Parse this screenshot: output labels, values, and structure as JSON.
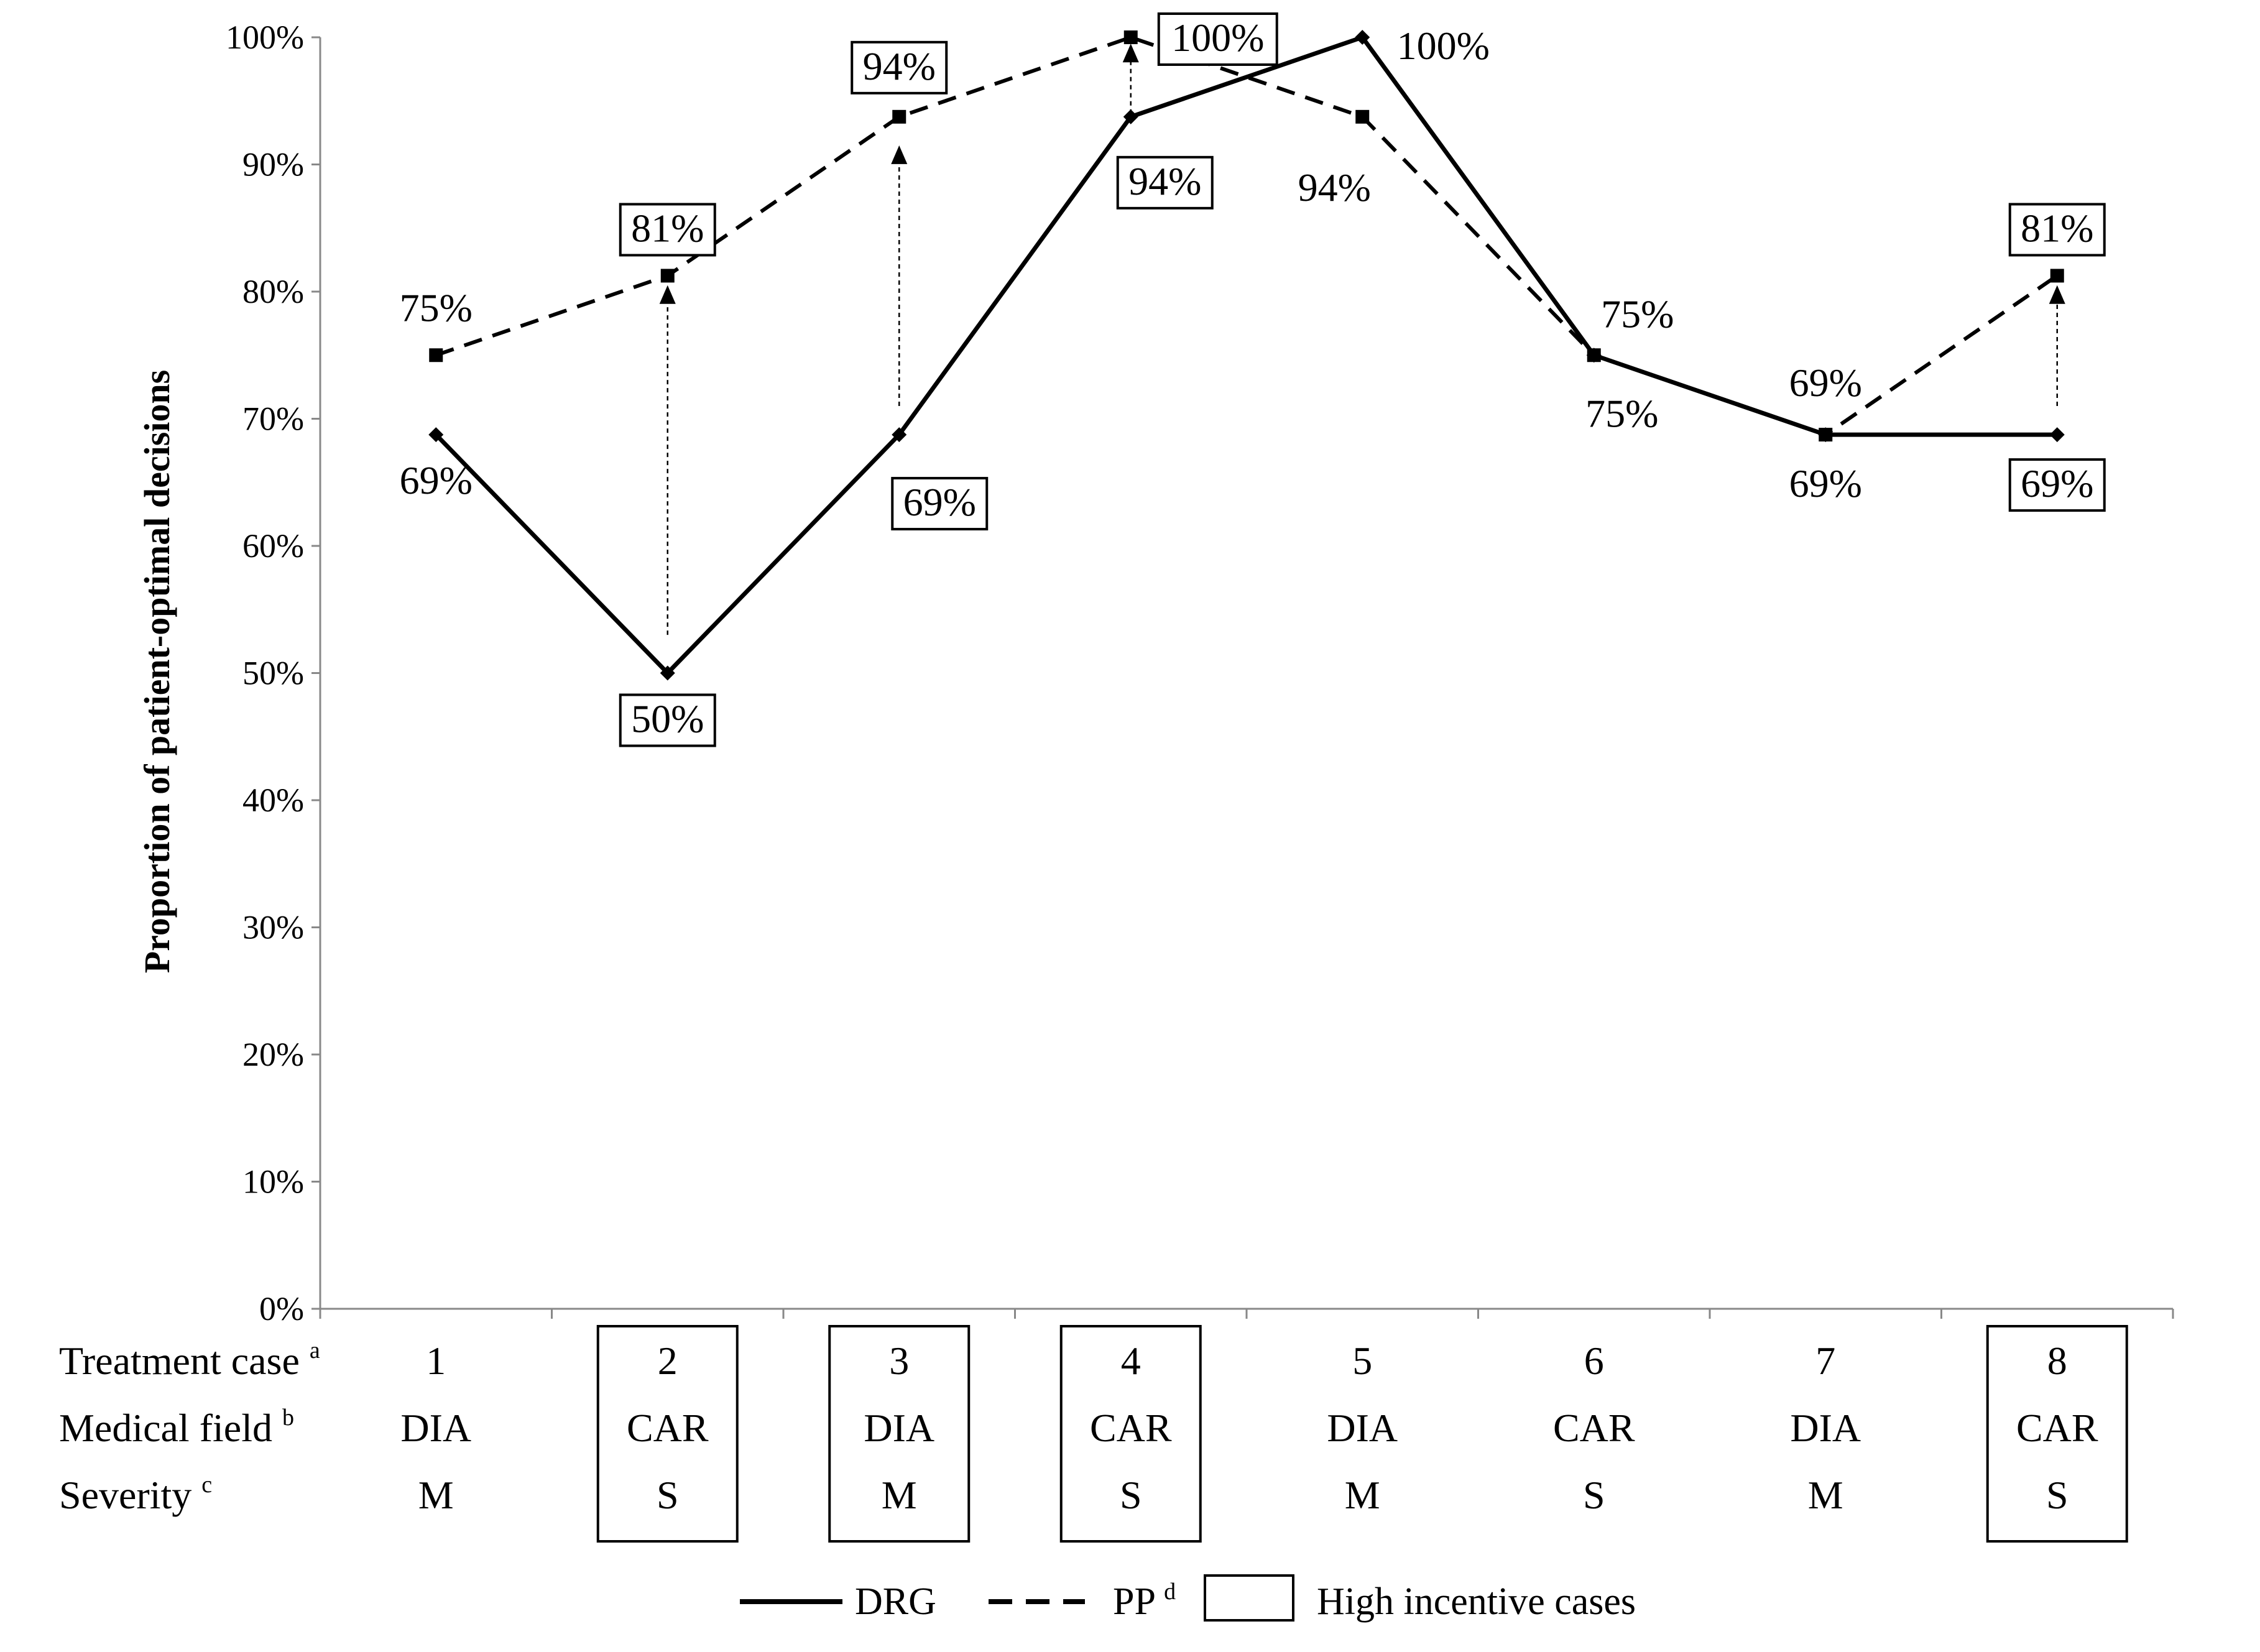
{
  "chart_data": {
    "type": "line",
    "xlabel": "",
    "ylabel": "Proportion of patient-optimal decisions",
    "ylim": [
      0,
      100
    ],
    "y_ticks": [
      "0%",
      "10%",
      "20%",
      "30%",
      "40%",
      "50%",
      "60%",
      "70%",
      "80%",
      "90%",
      "100%"
    ],
    "grid": false,
    "categories": [
      {
        "case": "1",
        "field": "DIA",
        "severity": "M",
        "high_incentive": false
      },
      {
        "case": "2",
        "field": "CAR",
        "severity": "S",
        "high_incentive": true
      },
      {
        "case": "3",
        "field": "DIA",
        "severity": "M",
        "high_incentive": true
      },
      {
        "case": "4",
        "field": "CAR",
        "severity": "S",
        "high_incentive": true
      },
      {
        "case": "5",
        "field": "DIA",
        "severity": "M",
        "high_incentive": false
      },
      {
        "case": "6",
        "field": "CAR",
        "severity": "S",
        "high_incentive": false
      },
      {
        "case": "7",
        "field": "DIA",
        "severity": "M",
        "high_incentive": false
      },
      {
        "case": "8",
        "field": "CAR",
        "severity": "S",
        "high_incentive": true
      }
    ],
    "series": [
      {
        "name": "DRG",
        "style": "solid",
        "values": [
          68.75,
          50,
          68.75,
          93.75,
          100,
          75,
          68.75,
          68.75
        ],
        "labels": [
          "69%",
          "50%",
          "69%",
          "94%",
          "100%",
          "75%",
          "69%",
          "69%"
        ]
      },
      {
        "name": "PP",
        "style": "dashed",
        "values": [
          75,
          81.25,
          93.75,
          100,
          93.75,
          75,
          68.75,
          81.25
        ],
        "labels": [
          "75%",
          "81%",
          "94%",
          "100%",
          "94%",
          "75%",
          "69%",
          "81%"
        ]
      }
    ],
    "arrows": [
      {
        "case_index": 1,
        "from": 53,
        "to": 80.5
      },
      {
        "case_index": 2,
        "from": 71,
        "to": 91.5
      },
      {
        "case_index": 3,
        "from": 94,
        "to": 99.5
      },
      {
        "case_index": 7,
        "from": 71,
        "to": 80.5
      }
    ],
    "row_labels": {
      "case": {
        "text": "Treatment case",
        "sup": "a"
      },
      "field": {
        "text": "Medical field",
        "sup": "b"
      },
      "severity": {
        "text": "Severity",
        "sup": "c"
      }
    },
    "legend": {
      "position": "bottom-center",
      "drg": "DRG",
      "pp": "PP",
      "pp_sup": "d",
      "box": "High incentive cases"
    }
  }
}
